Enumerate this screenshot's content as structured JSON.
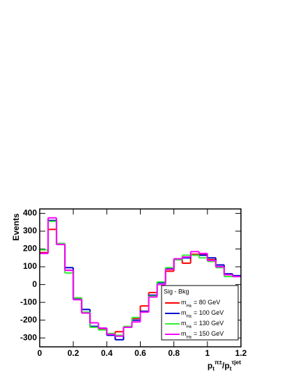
{
  "chart_data": {
    "type": "histogram",
    "ylabel": "Events",
    "xlabel": "p_{t}^{π±}/p_{t}^{τjet}",
    "legend_title": "Sig - Bkg",
    "bins": [
      0,
      0.05,
      0.1,
      0.15,
      0.2,
      0.25,
      0.3,
      0.35,
      0.4,
      0.45,
      0.5,
      0.55,
      0.6,
      0.65,
      0.7,
      0.75,
      0.8,
      0.85,
      0.9,
      0.95,
      1,
      1.05,
      1.1,
      1.15,
      1.2
    ],
    "series": [
      {
        "name": "m_{H±} = 80 GeV",
        "color": "#ff0000",
        "values": [
          180,
          310,
          230,
          80,
          -75,
          -160,
          -240,
          -250,
          -280,
          -265,
          -240,
          -190,
          -120,
          -45,
          10,
          75,
          140,
          120,
          170,
          170,
          140,
          110,
          60,
          45
        ]
      },
      {
        "name": "m_{H±} = 100 GeV",
        "color": "#0000cc",
        "values": [
          175,
          360,
          230,
          95,
          -80,
          -140,
          -235,
          -245,
          -285,
          -310,
          -240,
          -200,
          -150,
          -60,
          10,
          90,
          140,
          150,
          165,
          165,
          150,
          110,
          60,
          50
        ]
      },
      {
        "name": "m_{H±} = 130 GeV",
        "color": "#33ee33",
        "values": [
          195,
          355,
          230,
          65,
          -75,
          -155,
          -240,
          -255,
          -275,
          -285,
          -235,
          -185,
          -155,
          -65,
          15,
          95,
          140,
          165,
          165,
          150,
          130,
          95,
          45,
          45
        ]
      },
      {
        "name": "m_{H±} = 150 GeV",
        "color": "#ff00ff",
        "values": [
          175,
          375,
          225,
          80,
          -85,
          -160,
          -215,
          -245,
          -280,
          -290,
          -240,
          -210,
          -155,
          -70,
          0,
          85,
          145,
          155,
          185,
          175,
          135,
          100,
          55,
          45
        ]
      }
    ],
    "xlim": [
      0,
      1.2
    ],
    "xticks": [
      0,
      0.2,
      0.4,
      0.6,
      0.8,
      1,
      1.2
    ],
    "ylim": [
      -350,
      425
    ],
    "yticks": [
      -300,
      -200,
      -100,
      0,
      100,
      200,
      300,
      400
    ]
  }
}
